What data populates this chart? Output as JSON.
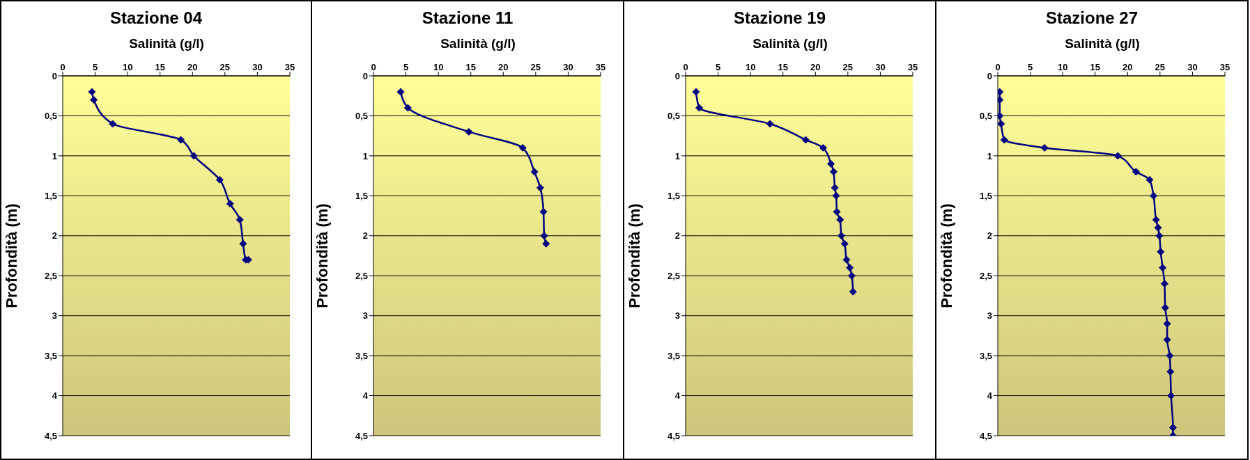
{
  "chart_data": [
    {
      "type": "line",
      "title": "Stazione 04",
      "xlabel": "Salinità (g/l)",
      "ylabel": "Profondità (m)",
      "xlim": [
        0,
        35
      ],
      "xticks": [
        0,
        5,
        10,
        15,
        20,
        25,
        30,
        35
      ],
      "ylim": [
        4.5,
        0
      ],
      "yticks": [
        0,
        {
          "value": 0.5,
          "label": "0,5"
        },
        1,
        {
          "value": 1.5,
          "label": "1,5"
        },
        2,
        {
          "value": 2.5,
          "label": "2,5"
        },
        3,
        {
          "value": 3.5,
          "label": "3,5"
        },
        4,
        {
          "value": 4.5,
          "label": "4,5"
        }
      ],
      "grid": "y",
      "marker": "diamond",
      "series": [
        {
          "color": "#000080",
          "x": [
            4.5,
            4.8,
            7.7,
            18.2,
            20.2,
            24.2,
            25.8,
            27.3,
            27.8,
            28.2,
            28.6
          ],
          "values": [
            0.2,
            0.3,
            0.6,
            0.8,
            1.0,
            1.3,
            1.6,
            1.8,
            2.1,
            2.3,
            2.3
          ]
        }
      ]
    },
    {
      "type": "line",
      "title": "Stazione 11",
      "xlabel": "Salinità (g/l)",
      "ylabel": "Profondità (m)",
      "xlim": [
        0,
        35
      ],
      "xticks": [
        0,
        5,
        10,
        15,
        20,
        25,
        30,
        35
      ],
      "ylim": [
        4.5,
        0
      ],
      "yticks": [
        0,
        {
          "value": 0.5,
          "label": "0,5"
        },
        1,
        {
          "value": 1.5,
          "label": "1,5"
        },
        2,
        {
          "value": 2.5,
          "label": "2,5"
        },
        3,
        {
          "value": 3.5,
          "label": "3,5"
        },
        4,
        {
          "value": 4.5,
          "label": "4,5"
        }
      ],
      "grid": "y",
      "marker": "diamond",
      "series": [
        {
          "color": "#000080",
          "x": [
            4.2,
            5.3,
            14.7,
            23.0,
            24.8,
            25.7,
            26.2,
            26.3,
            26.6
          ],
          "values": [
            0.2,
            0.4,
            0.7,
            0.9,
            1.2,
            1.4,
            1.7,
            2.0,
            2.1
          ]
        }
      ]
    },
    {
      "type": "line",
      "title": "Stazione 19",
      "xlabel": "Salinità (g/l)",
      "ylabel": "Profondità (m)",
      "xlim": [
        0,
        35
      ],
      "xticks": [
        0,
        5,
        10,
        15,
        20,
        25,
        30,
        35
      ],
      "ylim": [
        4.5,
        0
      ],
      "yticks": [
        0,
        {
          "value": 0.5,
          "label": "0,5"
        },
        1,
        {
          "value": 1.5,
          "label": "1,5"
        },
        2,
        {
          "value": 2.5,
          "label": "2,5"
        },
        3,
        {
          "value": 3.5,
          "label": "3,5"
        },
        4,
        {
          "value": 4.5,
          "label": "4,5"
        }
      ],
      "grid": "y",
      "marker": "diamond",
      "series": [
        {
          "color": "#000080",
          "x": [
            1.6,
            2.1,
            13.0,
            18.5,
            21.2,
            22.4,
            22.8,
            23.0,
            23.2,
            23.3,
            23.8,
            24.0,
            24.5,
            24.8,
            25.3,
            25.6,
            25.8
          ],
          "values": [
            0.2,
            0.4,
            0.6,
            0.8,
            0.9,
            1.1,
            1.2,
            1.4,
            1.5,
            1.7,
            1.8,
            2.0,
            2.1,
            2.3,
            2.4,
            2.5,
            2.7
          ]
        }
      ]
    },
    {
      "type": "line",
      "title": "Stazione 27",
      "xlabel": "Salinità (g/l)",
      "ylabel": "Profondità (m)",
      "xlim": [
        0,
        35
      ],
      "xticks": [
        0,
        5,
        10,
        15,
        20,
        25,
        30,
        35
      ],
      "ylim": [
        4.5,
        0
      ],
      "yticks": [
        0,
        {
          "value": 0.5,
          "label": "0,5"
        },
        1,
        {
          "value": 1.5,
          "label": "1,5"
        },
        2,
        {
          "value": 2.5,
          "label": "2,5"
        },
        3,
        {
          "value": 3.5,
          "label": "3,5"
        },
        4,
        {
          "value": 4.5,
          "label": "4,5"
        }
      ],
      "grid": "y",
      "marker": "diamond",
      "series": [
        {
          "color": "#000080",
          "x": [
            0.3,
            0.3,
            0.3,
            0.5,
            1.0,
            7.2,
            18.5,
            21.3,
            23.4,
            24.0,
            24.4,
            24.7,
            24.9,
            25.1,
            25.4,
            25.7,
            25.8,
            26.1,
            26.1,
            26.5,
            26.6,
            26.7,
            27.0,
            27.0
          ],
          "values": [
            0.2,
            0.3,
            0.5,
            0.6,
            0.8,
            0.9,
            1.0,
            1.2,
            1.3,
            1.5,
            1.8,
            1.9,
            2.0,
            2.2,
            2.4,
            2.6,
            2.9,
            3.1,
            3.3,
            3.5,
            3.7,
            4.0,
            4.4,
            4.5
          ]
        }
      ]
    }
  ]
}
